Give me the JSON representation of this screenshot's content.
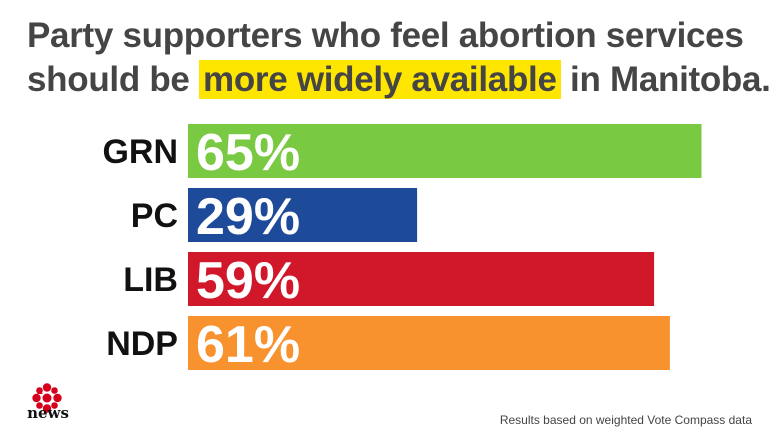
{
  "title": {
    "line1": "Party supporters who feel abortion services",
    "line2_prefix": "should be ",
    "line2_highlight": "more widely available",
    "line2_suffix": " in Manitoba."
  },
  "colors": {
    "highlight": "#ffe600",
    "title_text": "#454545"
  },
  "chart_data": {
    "type": "bar",
    "orientation": "horizontal",
    "categories": [
      "GRN",
      "PC",
      "LIB",
      "NDP"
    ],
    "values": [
      65,
      29,
      59,
      61
    ],
    "value_labels": [
      "65%",
      "29%",
      "59%",
      "61%"
    ],
    "colors": [
      "#7ac943",
      "#1e4a9a",
      "#d0182a",
      "#f7922e"
    ],
    "xlim": [
      0,
      100
    ],
    "grid": false,
    "title": "Party supporters who feel abortion services should be more widely available in Manitoba."
  },
  "logo": {
    "icon": "cbc-gem-icon",
    "word": "news"
  },
  "source": "Results based on weighted Vote Compass data"
}
